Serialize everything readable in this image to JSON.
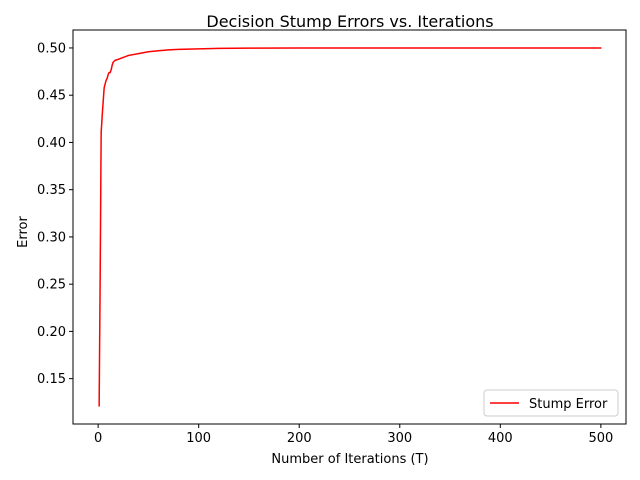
{
  "chart_data": {
    "type": "line",
    "title": "Decision Stump Errors vs. Iterations",
    "xlabel": "Number of Iterations (T)",
    "ylabel": "Error",
    "xlim": [
      -25,
      525
    ],
    "ylim": [
      0.102,
      0.519
    ],
    "xticks": [
      0,
      100,
      200,
      300,
      400,
      500
    ],
    "yticks": [
      0.15,
      0.2,
      0.25,
      0.3,
      0.35,
      0.4,
      0.45,
      0.5
    ],
    "xtick_labels": [
      "0",
      "100",
      "200",
      "300",
      "400",
      "500"
    ],
    "ytick_labels": [
      "0.15",
      "0.20",
      "0.25",
      "0.30",
      "0.35",
      "0.40",
      "0.45",
      "0.50"
    ],
    "grid": false,
    "legend_position": "lower-right",
    "series": [
      {
        "name": "Stump Error",
        "color": "#ff0000",
        "x": [
          1,
          2,
          3,
          4,
          5,
          6,
          7,
          8,
          9,
          10,
          11,
          12,
          13,
          14,
          15,
          17,
          20,
          25,
          30,
          35,
          40,
          50,
          60,
          70,
          80,
          100,
          120,
          150,
          200,
          250,
          300,
          400,
          500
        ],
        "y": [
          0.121,
          0.255,
          0.41,
          0.428,
          0.443,
          0.458,
          0.462,
          0.466,
          0.468,
          0.472,
          0.474,
          0.474,
          0.477,
          0.482,
          0.485,
          0.487,
          0.488,
          0.49,
          0.492,
          0.493,
          0.494,
          0.496,
          0.497,
          0.498,
          0.4985,
          0.499,
          0.4995,
          0.4998,
          0.5,
          0.5,
          0.5,
          0.5,
          0.5
        ]
      }
    ]
  }
}
